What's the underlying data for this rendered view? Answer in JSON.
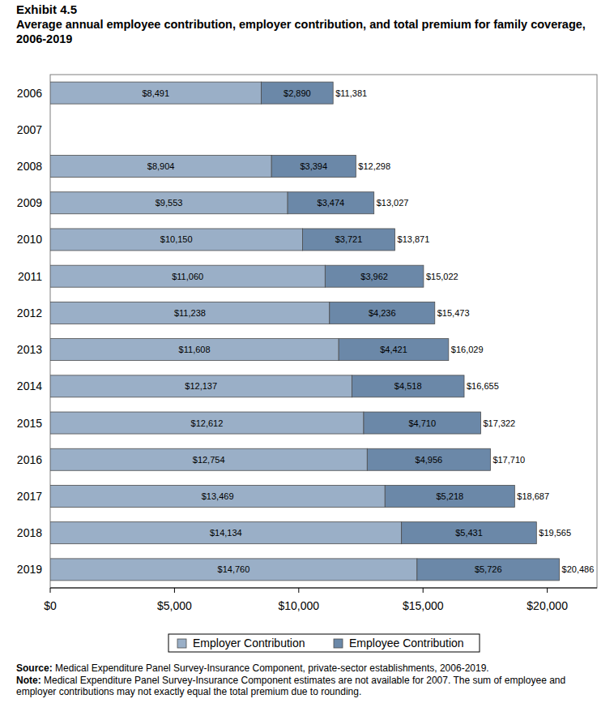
{
  "chart_data": {
    "type": "bar",
    "orientation": "horizontal",
    "stacked": true,
    "data_labels": true,
    "grid": false,
    "legend": "bottom",
    "exhibit": "Exhibit 4.5",
    "title": "Average annual employee contribution, employer contribution, and total premium for family coverage, 2006-2019",
    "categories": [
      "2006",
      "2007",
      "2008",
      "2009",
      "2010",
      "2011",
      "2012",
      "2013",
      "2014",
      "2015",
      "2016",
      "2017",
      "2018",
      "2019"
    ],
    "series": [
      {
        "name": "Employer Contribution",
        "color": "#9aafc7",
        "values": [
          8491,
          null,
          8904,
          9553,
          10150,
          11060,
          11238,
          11608,
          12137,
          12612,
          12754,
          13469,
          14134,
          14760
        ],
        "value_labels": [
          "$8,491",
          null,
          "$8,904",
          "$9,553",
          "$10,150",
          "$11,060",
          "$11,238",
          "$11,608",
          "$12,137",
          "$12,612",
          "$12,754",
          "$13,469",
          "$14,134",
          "$14,760"
        ]
      },
      {
        "name": "Employee Contribution",
        "color": "#6b88a8",
        "values": [
          2890,
          null,
          3394,
          3474,
          3721,
          3962,
          4236,
          4421,
          4518,
          4710,
          4956,
          5218,
          5431,
          5726
        ],
        "value_labels": [
          "$2,890",
          null,
          "$3,394",
          "$3,474",
          "$3,721",
          "$3,962",
          "$4,236",
          "$4,421",
          "$4,518",
          "$4,710",
          "$4,956",
          "$5,218",
          "$5,431",
          "$5,726"
        ]
      }
    ],
    "totals": [
      11381,
      null,
      12298,
      13027,
      13871,
      15022,
      15473,
      16029,
      16655,
      17322,
      17710,
      18687,
      19565,
      20486
    ],
    "totals_labels": [
      "$11,381",
      null,
      "$12,298",
      "$13,027",
      "$13,871",
      "$15,022",
      "$15,473",
      "$16,029",
      "$16,655",
      "$17,322",
      "$17,710",
      "$18,687",
      "$19,565",
      "$20,486"
    ],
    "xlim": [
      0,
      22000
    ],
    "xticks": [
      {
        "value": 0,
        "label": "$0"
      },
      {
        "value": 5000,
        "label": "$5,000"
      },
      {
        "value": 10000,
        "label": "$10,000"
      },
      {
        "value": 15000,
        "label": "$15,000"
      },
      {
        "value": 20000,
        "label": "$20,000"
      }
    ],
    "source_label": "Source:",
    "source": "Medical Expenditure Panel Survey-Insurance Component, private-sector establishments, 2006-2019.",
    "note_label": "Note:",
    "note": "Medical Expenditure Panel Survey-Insurance Component estimates are not available for 2007. The sum of employee and employer contributions may not exactly equal the total premium due to rounding."
  }
}
